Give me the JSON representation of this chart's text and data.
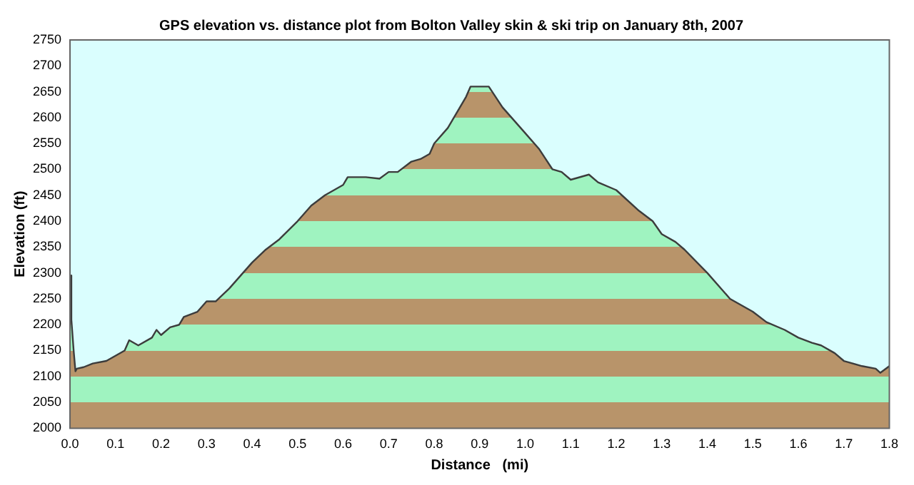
{
  "chart_data": {
    "type": "area",
    "title": "GPS elevation vs. distance plot from Bolton Valley skin & ski trip on January 8th, 2007",
    "xlabel": "Distance   (mi)",
    "ylabel": "Elevation (ft)",
    "x": [
      0,
      0.003,
      0.008,
      0.012,
      0.015,
      0.03,
      0.05,
      0.08,
      0.1,
      0.12,
      0.13,
      0.15,
      0.18,
      0.19,
      0.2,
      0.22,
      0.24,
      0.25,
      0.28,
      0.3,
      0.32,
      0.35,
      0.38,
      0.4,
      0.43,
      0.46,
      0.5,
      0.53,
      0.56,
      0.58,
      0.6,
      0.61,
      0.65,
      0.68,
      0.7,
      0.72,
      0.75,
      0.77,
      0.79,
      0.8,
      0.83,
      0.85,
      0.87,
      0.88,
      0.92,
      0.95,
      1.0,
      1.03,
      1.06,
      1.08,
      1.1,
      1.14,
      1.16,
      1.2,
      1.25,
      1.28,
      1.3,
      1.33,
      1.35,
      1.4,
      1.45,
      1.5,
      1.53,
      1.57,
      1.6,
      1.63,
      1.65,
      1.68,
      1.7,
      1.74,
      1.77,
      1.78,
      1.8
    ],
    "series": [
      {
        "color": "#b8946a",
        "values": [
          2295,
          2210,
          2150,
          2110,
          2115,
          2118,
          2125,
          2130,
          2140,
          2150,
          2170,
          2160,
          2175,
          2190,
          2180,
          2195,
          2200,
          2215,
          2225,
          2245,
          2245,
          2270,
          2300,
          2320,
          2345,
          2365,
          2400,
          2430,
          2450,
          2460,
          2470,
          2485,
          2485,
          2482,
          2495,
          2495,
          2515,
          2520,
          2530,
          2550,
          2580,
          2610,
          2640,
          2660,
          2660,
          2620,
          2570,
          2540,
          2500,
          2495,
          2480,
          2490,
          2475,
          2460,
          2420,
          2400,
          2375,
          2360,
          2345,
          2300,
          2250,
          2225,
          2205,
          2190,
          2175,
          2165,
          2160,
          2145,
          2130,
          2120,
          2115,
          2107,
          2120
        ]
      }
    ],
    "xlim": [
      0,
      1.8
    ],
    "xticks": [
      {
        "value": 0,
        "label": "0.0"
      },
      0.1,
      0.2,
      0.3,
      0.4,
      0.5,
      0.6,
      0.7,
      0.8,
      0.9,
      {
        "value": 1,
        "label": "1.0"
      },
      1.1,
      1.2,
      1.3,
      1.4,
      1.5,
      1.6,
      1.7,
      1.8
    ],
    "ylim": [
      2000,
      2750
    ],
    "yticks": [
      2000,
      2050,
      2100,
      2150,
      2200,
      2250,
      2300,
      2350,
      2400,
      2450,
      2500,
      2550,
      2600,
      2650,
      2700,
      2750
    ],
    "grid": false,
    "legend": false,
    "marker": "none",
    "line_style": "solid"
  }
}
